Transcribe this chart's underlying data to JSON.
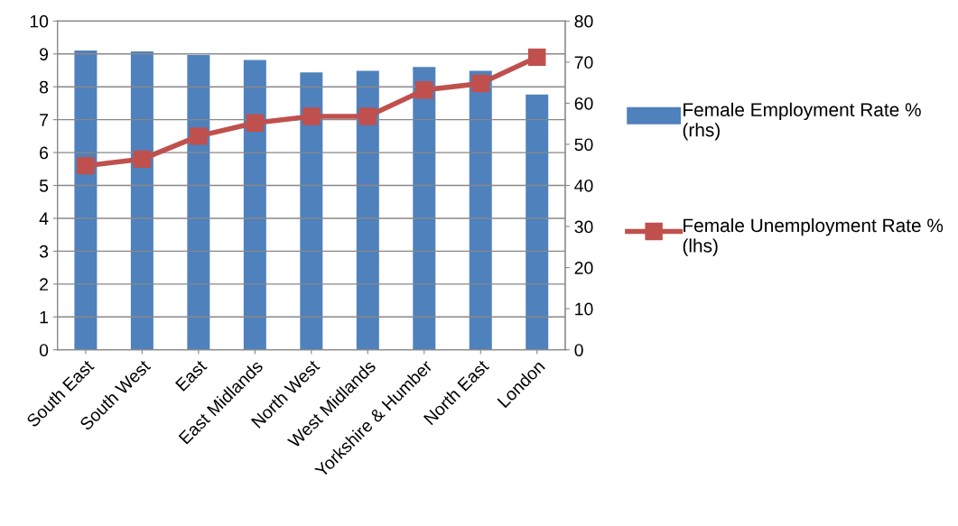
{
  "chart_data": {
    "type": "bar",
    "categories": [
      "South East",
      "South West",
      "East",
      "East Midlands",
      "North West",
      "West Midlands",
      "Yorkshire & Humber",
      "North East",
      "London"
    ],
    "series": [
      {
        "name": "Female Employment Rate % (rhs)",
        "axis": "y2",
        "color": "#4f81bd",
        "values": [
          72.8,
          72.6,
          71.7,
          70.5,
          67.5,
          67.9,
          68.8,
          67.9,
          62.1
        ]
      },
      {
        "name": "Female Unemployment Rate % (lhs)",
        "type": "line",
        "axis": "y",
        "color": "#c0504d",
        "marker": "square",
        "values": [
          5.6,
          5.8,
          6.5,
          6.9,
          7.1,
          7.1,
          7.9,
          8.1,
          8.9
        ]
      }
    ],
    "ylim": [
      0,
      10
    ],
    "yticks": [
      0,
      1,
      2,
      3,
      4,
      5,
      6,
      7,
      8,
      9,
      10
    ],
    "y2lim": [
      0,
      80
    ],
    "y2ticks": [
      0,
      10,
      20,
      30,
      40,
      50,
      60,
      70,
      80
    ],
    "grid": "y",
    "legend": "right"
  }
}
